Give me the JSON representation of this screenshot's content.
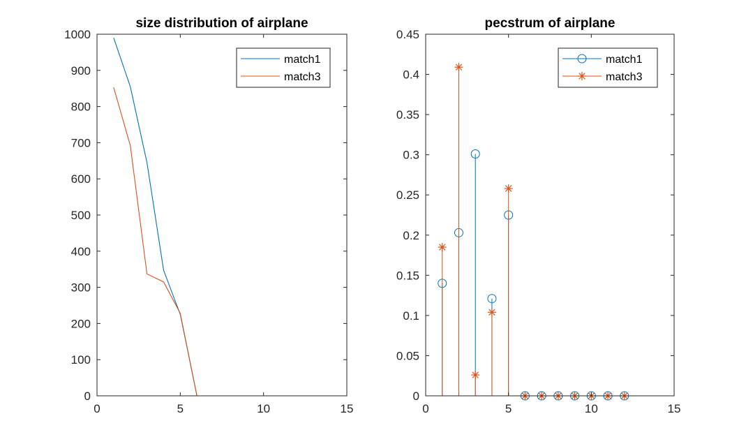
{
  "colors": {
    "match1": "#0072BD",
    "match3": "#D95319",
    "axis": "#262626",
    "background": "#ffffff"
  },
  "chart_data": [
    {
      "type": "line",
      "title": "size distribution of airplane",
      "xlabel": "",
      "ylabel": "",
      "xlim": [
        0,
        15
      ],
      "ylim": [
        0,
        1000
      ],
      "xticks": [
        "0",
        "5",
        "10",
        "15"
      ],
      "yticks": [
        "0",
        "100",
        "200",
        "300",
        "400",
        "500",
        "600",
        "700",
        "800",
        "900",
        "1000"
      ],
      "grid": false,
      "legend_position": "top-right",
      "x": [
        1,
        2,
        3,
        4,
        5,
        6,
        7,
        8,
        9,
        10,
        11,
        12
      ],
      "series": [
        {
          "name": "match1",
          "values": [
            990,
            855,
            645,
            347,
            225,
            0,
            0,
            0,
            0,
            0,
            0,
            0
          ]
        },
        {
          "name": "match3",
          "values": [
            853,
            692,
            337,
            315,
            228,
            0,
            0,
            0,
            0,
            0,
            0,
            0
          ]
        }
      ]
    },
    {
      "type": "stem",
      "title": "pecstrum of airplane",
      "xlabel": "",
      "ylabel": "",
      "xlim": [
        0,
        15
      ],
      "ylim": [
        0,
        0.45
      ],
      "xticks": [
        "0",
        "5",
        "10",
        "15"
      ],
      "yticks": [
        "0",
        "0.05",
        "0.1",
        "0.15",
        "0.2",
        "0.25",
        "0.3",
        "0.35",
        "0.4",
        "0.45"
      ],
      "grid": false,
      "legend_position": "top-right",
      "x": [
        1,
        2,
        3,
        4,
        5,
        6,
        7,
        8,
        9,
        10,
        11,
        12
      ],
      "series": [
        {
          "name": "match1",
          "marker": "circle",
          "values": [
            0.14,
            0.203,
            0.301,
            0.121,
            0.225,
            0,
            0,
            0,
            0,
            0,
            0,
            0
          ]
        },
        {
          "name": "match3",
          "marker": "asterisk",
          "values": [
            0.185,
            0.409,
            0.026,
            0.104,
            0.258,
            0,
            0,
            0,
            0,
            0,
            0,
            0
          ]
        }
      ]
    }
  ]
}
